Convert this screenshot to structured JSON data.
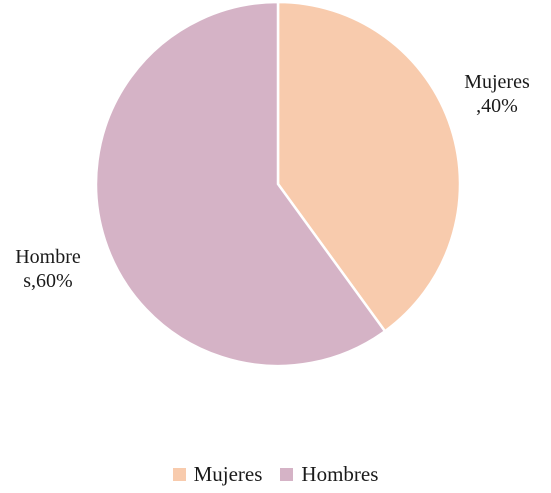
{
  "chart_data": {
    "type": "pie",
    "title": "",
    "categories": [
      "Mujeres",
      "Hombres"
    ],
    "values": [
      40,
      60
    ],
    "unit": "%",
    "colors": [
      "#f8cbad",
      "#d5b3c6"
    ],
    "data_labels": [
      "Mujeres\n,40%",
      "Hombre\ns,60%"
    ],
    "legend": {
      "placement": "bottom",
      "entries": [
        "Mujeres",
        "Hombres"
      ]
    }
  }
}
